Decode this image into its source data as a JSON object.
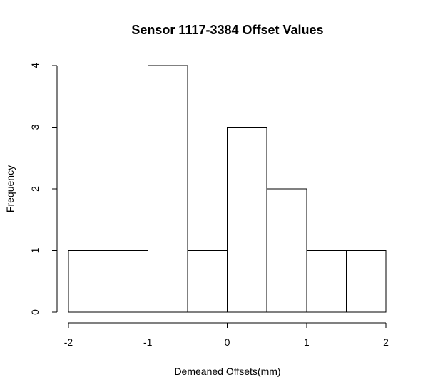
{
  "chart_data": {
    "type": "bar",
    "subtype": "histogram",
    "title": "Sensor 1117-3384 Offset Values",
    "xlabel": "Demeaned Offsets(mm)",
    "ylabel": "Frequency",
    "bins": [
      {
        "start": -2.0,
        "end": -1.5,
        "count": 1
      },
      {
        "start": -1.5,
        "end": -1.0,
        "count": 1
      },
      {
        "start": -1.0,
        "end": -0.5,
        "count": 4
      },
      {
        "start": -0.5,
        "end": 0.0,
        "count": 1
      },
      {
        "start": 0.0,
        "end": 0.5,
        "count": 3
      },
      {
        "start": 0.5,
        "end": 1.0,
        "count": 2
      },
      {
        "start": 1.0,
        "end": 1.5,
        "count": 1
      },
      {
        "start": 1.5,
        "end": 2.0,
        "count": 1
      }
    ],
    "xlim": [
      -2,
      2
    ],
    "ylim": [
      0,
      4
    ],
    "xticks": [
      -2,
      -1,
      0,
      1,
      2
    ],
    "xtick_labels": [
      "-2",
      "-1",
      "0",
      "1",
      "2"
    ],
    "yticks": [
      0,
      1,
      2,
      3,
      4
    ],
    "ytick_labels": [
      "0",
      "1",
      "2",
      "3",
      "4"
    ],
    "grid": false,
    "bar_fill": "#ffffff",
    "bar_stroke": "#000000"
  }
}
